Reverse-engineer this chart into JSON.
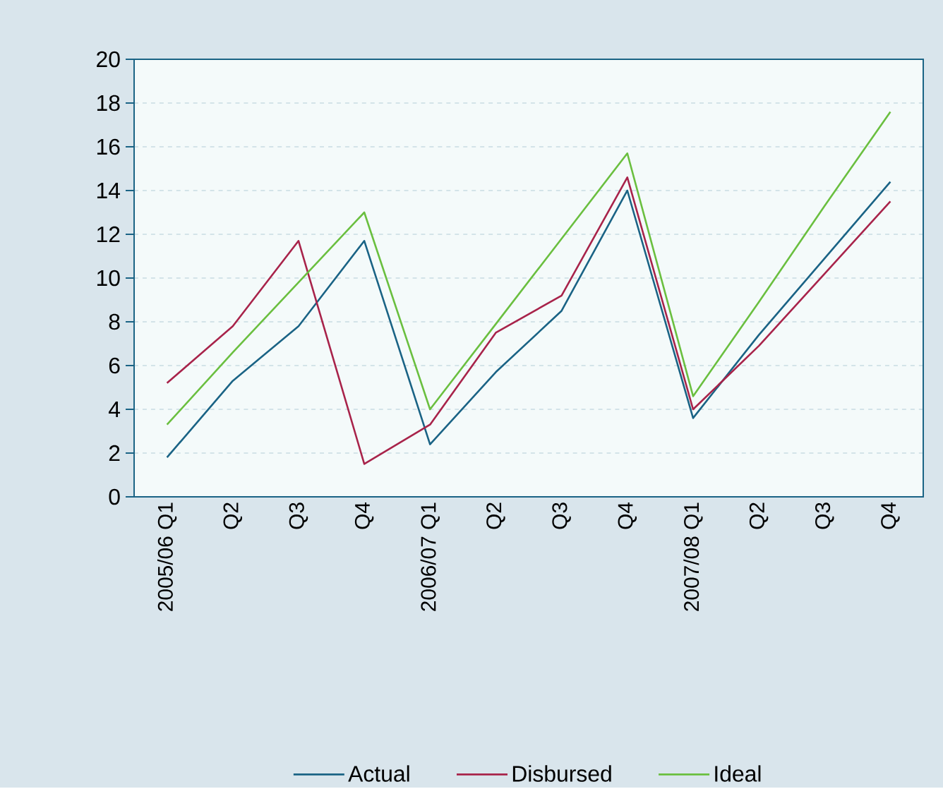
{
  "chart_data": {
    "type": "line",
    "categories": [
      "2005/06 Q1",
      "Q2",
      "Q3",
      "Q4",
      "2006/07 Q1",
      "Q2",
      "Q3",
      "Q4",
      "2007/08 Q1",
      "Q2",
      "Q3",
      "Q4"
    ],
    "series": [
      {
        "name": "Actual",
        "color": "#1a6385",
        "values": [
          1.8,
          5.3,
          7.8,
          11.7,
          2.4,
          5.7,
          8.5,
          14.0,
          3.6,
          7.4,
          10.9,
          14.4
        ]
      },
      {
        "name": "Disbursed",
        "color": "#a8234a",
        "values": [
          5.2,
          7.8,
          11.7,
          1.5,
          3.3,
          7.5,
          9.2,
          14.6,
          4.0,
          6.9,
          10.2,
          13.5
        ]
      },
      {
        "name": "Ideal",
        "color": "#6abf3f",
        "values": [
          3.3,
          6.6,
          9.8,
          13.0,
          4.0,
          7.9,
          11.8,
          15.7,
          4.6,
          8.9,
          13.3,
          17.6
        ]
      }
    ],
    "ylim": [
      0,
      20
    ],
    "yticks": [
      0,
      2,
      4,
      6,
      8,
      10,
      12,
      14,
      16,
      18,
      20
    ],
    "grid": "y",
    "legend": "bottom",
    "marker": "none",
    "line_style": "solid"
  }
}
